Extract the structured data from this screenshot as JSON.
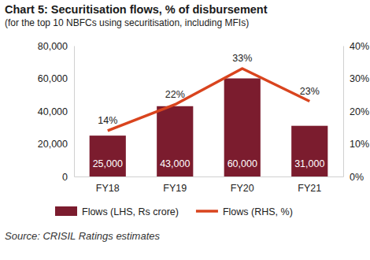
{
  "chart_data": {
    "type": "bar",
    "title": "Chart 5: Securitisation flows, % of disbursement",
    "subtitle": "(for the top 10 NBFCs using securitisation, including MFIs)",
    "source": "Source: CRISIL Ratings estimates",
    "categories": [
      "FY18",
      "FY19",
      "FY20",
      "FY21"
    ],
    "series": [
      {
        "name": "Flows (LHS, Rs crore)",
        "type": "bar",
        "color": "#7b1c2e",
        "values": [
          25000,
          43000,
          60000,
          31000
        ],
        "value_labels": [
          "25,000",
          "43,000",
          "60,000",
          "31,000"
        ]
      },
      {
        "name": "Flows (RHS, %)",
        "type": "line",
        "axis": "y2",
        "color": "#d9441e",
        "values": [
          14,
          22,
          33,
          23
        ],
        "value_labels": [
          "14%",
          "22%",
          "33%",
          "23%"
        ]
      }
    ],
    "ylim": [
      0,
      80000
    ],
    "yticks": [
      0,
      {
        "value": 20000,
        "label": "20,000"
      },
      {
        "value": 40000,
        "label": "40,000"
      },
      {
        "value": 60000,
        "label": "60,000"
      },
      {
        "value": 80000,
        "label": "80,000"
      }
    ],
    "y2lim": [
      0,
      40
    ],
    "y2ticks": [
      {
        "value": 0,
        "label": "0%"
      },
      {
        "value": 10,
        "label": "10%"
      },
      {
        "value": 20,
        "label": "20%"
      },
      {
        "value": 30,
        "label": "30%"
      },
      {
        "value": 40,
        "label": "40%"
      }
    ],
    "grid": false,
    "legend": "bottom",
    "data_labels": true
  }
}
